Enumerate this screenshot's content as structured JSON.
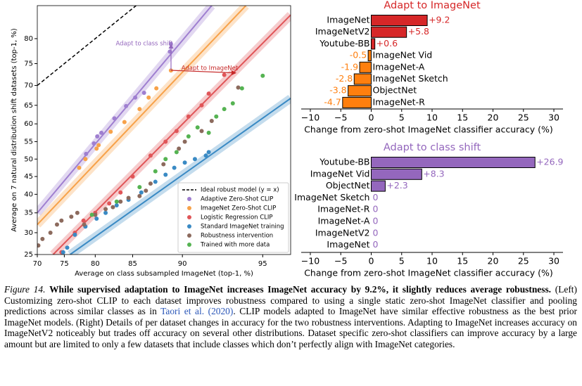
{
  "chart_data": [
    {
      "type": "scatter",
      "xlabel": "Average on class subsampled ImageNet (top-1, %)",
      "ylabel": "Average on 7 natural distribution shift datasets (top-1, %)",
      "xscale": "logit",
      "yscale": "logit",
      "xlim": [
        70,
        96.1
      ],
      "ylim": [
        25,
        85.4
      ],
      "xticks": [
        70,
        75,
        80,
        85,
        90,
        95
      ],
      "yticks": [
        25,
        30,
        35,
        40,
        45,
        50,
        55,
        60,
        65,
        70,
        75,
        80
      ],
      "legend": "lower right",
      "annotations": [
        "Adapt to class shift",
        "Adapt to ImageNet"
      ],
      "series": [
        {
          "name": "Ideal robust model (y = x)",
          "color": "#000000",
          "style": "dashed",
          "x": [
            70,
            85.4
          ],
          "values": [
            70,
            85.4
          ]
        },
        {
          "name": "Adaptive Zero-Shot CLIP",
          "color": "#9f7fd0",
          "style": "points",
          "x": [
            78.6,
            79.8,
            80.3,
            80.9,
            82.7,
            84.2,
            85.3,
            86.3,
            88.9,
            89.0
          ],
          "values": [
            51.5,
            54.5,
            56.5,
            57.5,
            61.5,
            64.8,
            67,
            68.2,
            77.5,
            79
          ],
          "fit": {
            "x": [
              70,
              92.2
            ],
            "values": [
              35,
              85.4
            ]
          }
        },
        {
          "name": "ImageNet Zero-Shot CLIP",
          "color": "#f7a24a",
          "style": "points",
          "x": [
            77.5,
            78.5,
            80.2,
            80.5,
            82.2,
            84,
            85.8,
            86.8,
            87.6,
            89
          ],
          "values": [
            47.5,
            50,
            53,
            54,
            57.8,
            60.5,
            64,
            67,
            69.3,
            73.5
          ],
          "fit": {
            "x": [
              70,
              94.2
            ],
            "values": [
              32,
              85.4
            ]
          }
        },
        {
          "name": "Logistic Regression CLIP",
          "color": "#e05558",
          "style": "points",
          "x": [
            74.5,
            76.8,
            78.2,
            80,
            82,
            83.5,
            85,
            87,
            88.5,
            89.5,
            90.5,
            91.5,
            92,
            93
          ],
          "values": [
            25.5,
            30,
            33,
            35,
            37.5,
            40.5,
            45,
            51,
            55,
            58,
            62,
            65,
            68,
            72.5
          ],
          "fit": {
            "x": [
              73,
              96.1
            ],
            "values": [
              25,
              84
            ]
          }
        },
        {
          "name": "Standard ImageNet training",
          "color": "#3a8ac4",
          "style": "points",
          "x": [
            74.8,
            75.5,
            76.8,
            78.5,
            80.2,
            81.5,
            83,
            84.5,
            86,
            87.5,
            88.5,
            89.3,
            90.2,
            91,
            91.8,
            92
          ],
          "values": [
            25.5,
            26.5,
            29.5,
            31.5,
            33.5,
            35,
            37,
            38.5,
            40.5,
            43.5,
            45.5,
            47.5,
            49,
            50,
            51,
            52
          ],
          "fit": {
            "x": [
              76,
              96.1
            ],
            "values": [
              25,
              66.8
            ]
          }
        },
        {
          "name": "Robustness intervention",
          "color": "#8c6a5d",
          "style": "points",
          "x": [
            70.2,
            71,
            72.5,
            73.7,
            74.5,
            76.2,
            77.2,
            78.3,
            80,
            81.5,
            82.5,
            83.5,
            84.5,
            85.8,
            86.5,
            87,
            88.3,
            89.7,
            90.2,
            91.5,
            92.2,
            93.8
          ],
          "values": [
            27,
            28.5,
            30,
            32,
            33,
            34,
            35,
            32,
            34.5,
            36,
            36.5,
            38,
            39,
            39.5,
            41,
            43,
            48.5,
            53,
            55,
            58,
            60.8,
            69.5
          ]
        },
        {
          "name": "Trained with more data",
          "color": "#55b352",
          "style": "points",
          "x": [
            79.5,
            83,
            85.8,
            87.5,
            88.5,
            89.5,
            90.5,
            91.2,
            92,
            92.5,
            93,
            93.5,
            94,
            95
          ],
          "values": [
            34.5,
            38,
            42,
            46.5,
            50,
            52,
            56.5,
            59,
            57.5,
            62,
            64,
            65.5,
            69.3,
            72.3
          ]
        }
      ]
    },
    {
      "type": "hbar",
      "title": "Adapt to ImageNet",
      "categories": [
        "ImageNet",
        "ImageNetV2",
        "Youtube-BB",
        "ImageNet Vid",
        "ImageNet-A",
        "ImageNet Sketch",
        "ObjectNet",
        "ImageNet-R"
      ],
      "values": [
        9.2,
        5.8,
        0.6,
        -0.5,
        -1.9,
        -2.8,
        -3.8,
        -4.7
      ],
      "value_labels": [
        "+9.2",
        "+5.8",
        "+0.6",
        "-0.5",
        "-1.9",
        "-2.8",
        "-3.8",
        "-4.7"
      ],
      "color": "#d62728",
      "negative_color": "#ff7f0e",
      "xlim": [
        -11.5,
        31.5
      ],
      "xticks": [
        {
          "value": -10,
          "label": "−10"
        },
        {
          "value": -5,
          "label": "−5"
        },
        0,
        5,
        10,
        15,
        20,
        25,
        30
      ],
      "xlabel": "Change from zero-shot ImageNet classifier accuracy (%)"
    },
    {
      "type": "hbar",
      "title": "Adapt to class shift",
      "categories": [
        "Youtube-BB",
        "ImageNet Vid",
        "ObjectNet",
        "ImageNet Sketch",
        "ImageNet-R",
        "ImageNet-A",
        "ImageNetV2",
        "ImageNet"
      ],
      "values": [
        26.9,
        8.3,
        2.3,
        0,
        0,
        0,
        0,
        0
      ],
      "value_labels": [
        "+26.9",
        "+8.3",
        "+2.3",
        "0",
        "0",
        "0",
        "0",
        "0"
      ],
      "color": "#9467bd",
      "negative_color": "#9467bd",
      "xlim": [
        -11.5,
        31.5
      ],
      "xticks": [
        {
          "value": -10,
          "label": "−10"
        },
        {
          "value": -5,
          "label": "−5"
        },
        0,
        5,
        10,
        15,
        20,
        25,
        30
      ],
      "xlabel": "Change from zero-shot ImageNet classifier accuracy (%)"
    }
  ],
  "caption": {
    "label": "Figure 14.",
    "headline": "While supervised adaptation to ImageNet increases ImageNet accuracy by 9.2%, it slightly reduces average robustness.",
    "body_before": "(Left) Customizing zero-shot CLIP to each dataset improves robustness compared to using a single static zero-shot ImageNet classifier and pooling predictions across similar classes as in",
    "citation": "Taori et al. (2020)",
    "body_after": ". CLIP models adapted to ImageNet have similar effective robustness as the best prior ImageNet models. (Right) Details of per dataset changes in accuracy for the two robustness interventions. Adapting to ImageNet increases accuracy on ImageNetV2 noticeably but trades off accuracy on several other distributions. Dataset specific zero-shot classifiers can improve accuracy by a large amount but are limited to only a few datasets that include classes which don’t perfectly align with ImageNet categories."
  }
}
